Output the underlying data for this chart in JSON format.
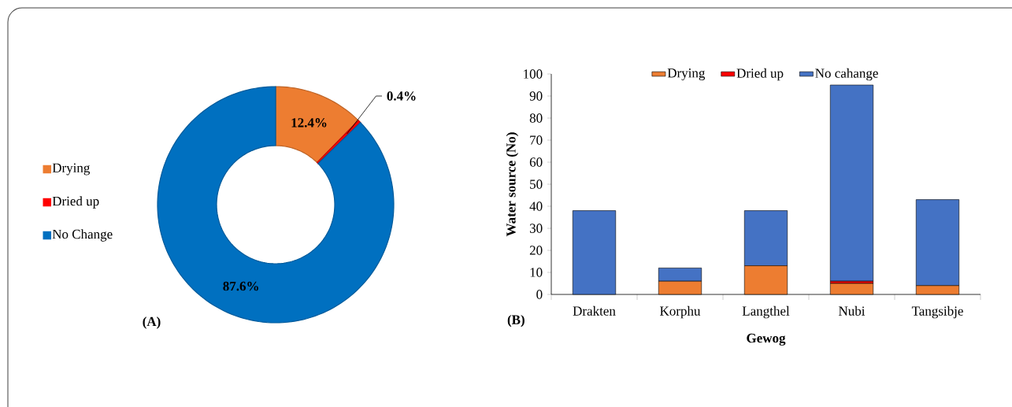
{
  "chart_data": [
    {
      "type": "donut",
      "categories": [
        "Drying",
        "Dried up",
        "No Change"
      ],
      "values": [
        12.4,
        0.4,
        87.6
      ],
      "colors": [
        "#ed7d31",
        "#ff0000",
        "#0070c0"
      ],
      "value_labels": [
        "12.4%",
        "0.4%",
        "87.6%"
      ],
      "legend": "left",
      "annotations": [
        "(A)"
      ]
    },
    {
      "type": "bar",
      "stacked": true,
      "categories": [
        "Drakten",
        "Korphu",
        "Langthel",
        "Nubi",
        "Tangsibje"
      ],
      "series": [
        {
          "name": "Drying",
          "color": "#ed7d31",
          "values": [
            0,
            6,
            13,
            5,
            4
          ]
        },
        {
          "name": "Dried up",
          "color": "#ff0000",
          "values": [
            0,
            0,
            0,
            1,
            0
          ]
        },
        {
          "name": "No cahange",
          "color": "#4472c4",
          "values": [
            38,
            6,
            25,
            89,
            39
          ]
        }
      ],
      "ylim": [
        0,
        100
      ],
      "yticks": [
        0,
        10,
        20,
        30,
        40,
        50,
        60,
        70,
        80,
        90,
        100
      ],
      "xlabel": "Gewog",
      "ylabel": "Water source (No)",
      "legend": "top",
      "annotations": [
        "(B)"
      ]
    }
  ]
}
